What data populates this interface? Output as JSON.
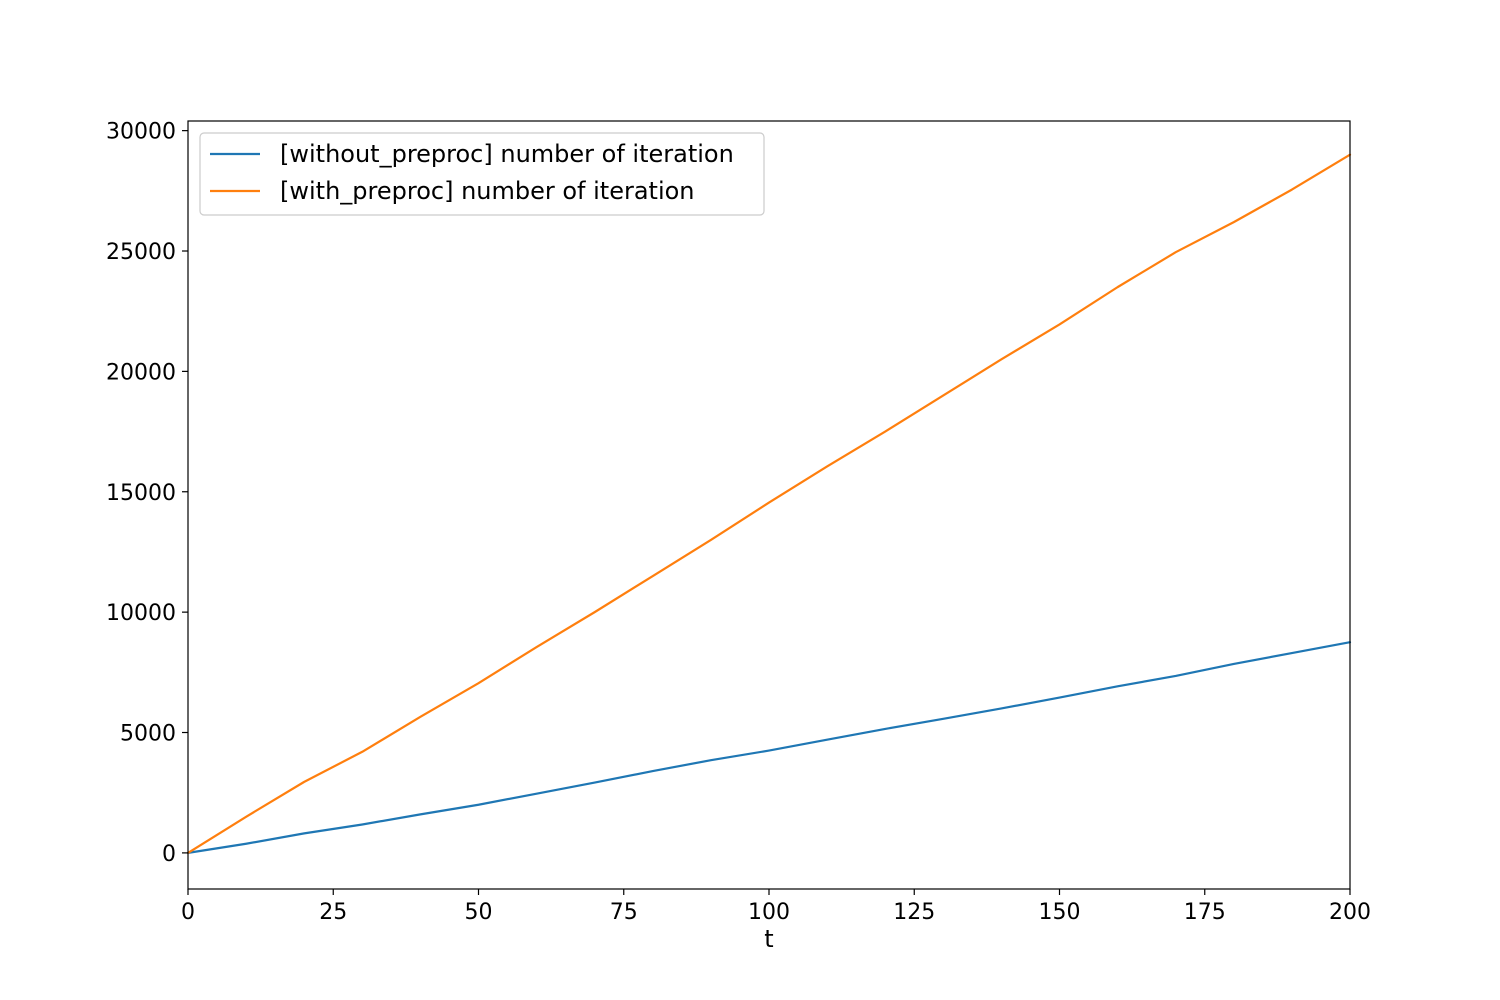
{
  "chart_data": {
    "type": "line",
    "title": "",
    "xlabel": "t",
    "ylabel": "",
    "xlim": [
      0,
      200
    ],
    "ylim": [
      -1500,
      30400
    ],
    "xticks": [
      0,
      25,
      50,
      75,
      100,
      125,
      150,
      175,
      200
    ],
    "yticks": [
      0,
      5000,
      10000,
      15000,
      20000,
      25000,
      30000
    ],
    "grid": false,
    "legend": "top-left",
    "x": [
      0,
      10,
      20,
      30,
      40,
      50,
      60,
      70,
      80,
      90,
      100,
      110,
      120,
      130,
      140,
      150,
      160,
      170,
      180,
      190,
      200
    ],
    "series": [
      {
        "name": "[without_preproc] number of iteration",
        "color": "#1f77b4",
        "values": [
          0,
          380,
          810,
          1180,
          1600,
          2000,
          2460,
          2920,
          3400,
          3850,
          4250,
          4700,
          5150,
          5570,
          6000,
          6450,
          6920,
          7350,
          7850,
          8300,
          8750
        ]
      },
      {
        "name": "[with_preproc] number of iteration",
        "color": "#ff7f0e",
        "values": [
          0,
          1500,
          2950,
          4200,
          5650,
          7050,
          8550,
          10000,
          11500,
          13000,
          14550,
          16050,
          17500,
          19000,
          20500,
          21950,
          23500,
          24950,
          26200,
          27550,
          29000
        ]
      }
    ]
  }
}
